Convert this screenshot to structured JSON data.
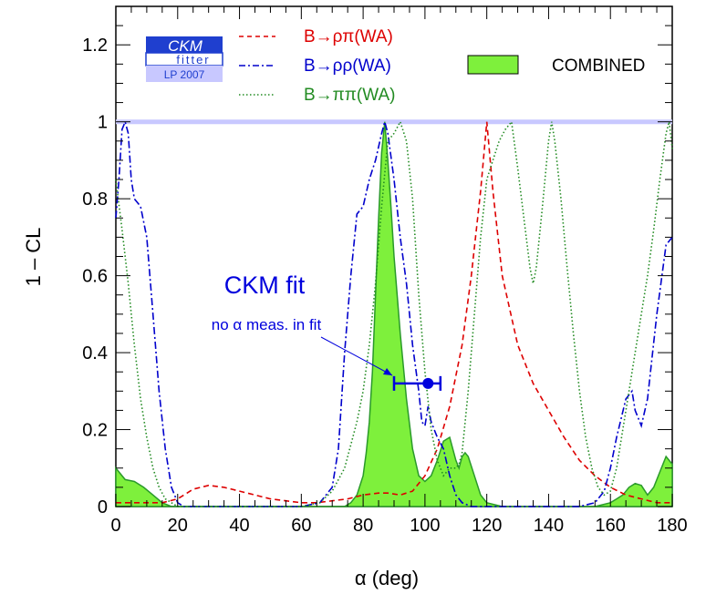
{
  "chart_data": {
    "type": "line",
    "xlabel": "α    (deg)",
    "ylabel": "1 – CL",
    "xlim": [
      0,
      180
    ],
    "ylim": [
      0,
      1.3
    ],
    "x_ticks": [
      "0",
      "20",
      "40",
      "60",
      "80",
      "100",
      "120",
      "140",
      "160",
      "180"
    ],
    "y_ticks": [
      "0",
      "0.2",
      "0.4",
      "0.6",
      "0.8",
      "1",
      "1.2"
    ],
    "x_tick_values": [
      0,
      20,
      40,
      60,
      80,
      100,
      120,
      140,
      160,
      180
    ],
    "y_tick_values": [
      0,
      0.2,
      0.4,
      0.6,
      0.8,
      1.0,
      1.2
    ],
    "grid": false,
    "reference_line": {
      "y": 1.0,
      "color": "#c8c8ff"
    },
    "logo": {
      "line1": "CKM",
      "line2": "fitter",
      "line3": "LP 2007"
    },
    "legend": {
      "placement": "top",
      "entries": [
        {
          "label": "B→ρπ(WA)",
          "color": "#dd0000",
          "style": "dashed"
        },
        {
          "label": "B→ρρ(WA)",
          "color": "#0000cc",
          "style": "dashdot"
        },
        {
          "label": "B→ππ(WA)",
          "color": "#228B22",
          "style": "dotted"
        },
        {
          "label": "COMBINED",
          "color": "#7ef03c",
          "style": "fill"
        }
      ]
    },
    "annotation": {
      "title": "CKM fit",
      "subtitle": "no α meas. in fit",
      "point": {
        "x": 101,
        "y": 0.32,
        "xerr_low": 90,
        "xerr_high": 105
      },
      "color": "#0000dd"
    },
    "series": [
      {
        "name": "B→ρπ(WA)",
        "color": "#dd0000",
        "style": "dashed",
        "x": [
          0,
          5,
          10,
          15,
          20,
          25,
          30,
          35,
          40,
          45,
          50,
          55,
          60,
          65,
          70,
          75,
          80,
          85,
          88,
          92,
          96,
          100,
          104,
          108,
          112,
          115,
          118,
          120,
          122,
          125,
          130,
          135,
          140,
          145,
          150,
          155,
          160,
          165,
          170,
          175,
          180
        ],
        "y": [
          0.01,
          0.01,
          0.01,
          0.01,
          0.02,
          0.045,
          0.055,
          0.05,
          0.04,
          0.03,
          0.02,
          0.015,
          0.01,
          0.01,
          0.015,
          0.02,
          0.03,
          0.035,
          0.035,
          0.03,
          0.04,
          0.08,
          0.15,
          0.26,
          0.42,
          0.6,
          0.82,
          1.0,
          0.82,
          0.6,
          0.42,
          0.32,
          0.25,
          0.18,
          0.12,
          0.08,
          0.05,
          0.03,
          0.02,
          0.01,
          0.01
        ]
      },
      {
        "name": "B→ρρ(WA)",
        "color": "#0000cc",
        "style": "dashdot",
        "x": [
          0,
          1,
          2,
          3,
          4,
          5,
          6,
          7,
          8,
          10,
          12,
          14,
          16,
          18,
          20,
          22,
          25,
          30,
          40,
          50,
          60,
          66,
          70,
          72,
          74,
          76,
          78,
          80,
          82,
          84,
          86,
          87,
          88,
          90,
          92,
          94,
          96,
          98,
          99,
          100,
          101,
          102,
          104,
          106,
          108,
          110,
          112,
          115,
          120,
          130,
          140,
          150,
          155,
          158,
          160,
          162,
          165,
          167,
          168,
          170,
          172,
          175,
          178,
          180
        ],
        "y": [
          0.75,
          0.85,
          0.98,
          1.0,
          0.97,
          0.85,
          0.8,
          0.79,
          0.78,
          0.7,
          0.5,
          0.3,
          0.15,
          0.05,
          0.01,
          0.0,
          0.0,
          0.0,
          0.0,
          0.0,
          0.0,
          0.01,
          0.05,
          0.15,
          0.4,
          0.6,
          0.76,
          0.78,
          0.85,
          0.9,
          0.97,
          1.0,
          0.97,
          0.85,
          0.7,
          0.58,
          0.42,
          0.3,
          0.22,
          0.21,
          0.26,
          0.22,
          0.18,
          0.15,
          0.08,
          0.03,
          0.01,
          0.0,
          0.0,
          0.0,
          0.0,
          0.0,
          0.01,
          0.04,
          0.1,
          0.18,
          0.28,
          0.3,
          0.25,
          0.21,
          0.28,
          0.5,
          0.68,
          0.7
        ]
      },
      {
        "name": "B→ππ(WA)",
        "color": "#228B22",
        "style": "dotted",
        "x": [
          0,
          2,
          4,
          6,
          8,
          10,
          12,
          14,
          16,
          18,
          20,
          40,
          60,
          66,
          70,
          74,
          78,
          80,
          82,
          84,
          86,
          88,
          90,
          92,
          94,
          96,
          98,
          100,
          102,
          104,
          106,
          108,
          110,
          111,
          112,
          114,
          116,
          118,
          120,
          122,
          124,
          126,
          128,
          130,
          132,
          134,
          135,
          136,
          138,
          140,
          141,
          142,
          144,
          146,
          148,
          150,
          152,
          154,
          156,
          158,
          160,
          162,
          164,
          166,
          168,
          170,
          172,
          174,
          176,
          178,
          179,
          180
        ],
        "y": [
          0.85,
          0.72,
          0.58,
          0.42,
          0.28,
          0.18,
          0.1,
          0.05,
          0.02,
          0.01,
          0.0,
          0.0,
          0.0,
          0.01,
          0.04,
          0.1,
          0.22,
          0.3,
          0.42,
          0.58,
          0.78,
          0.95,
          0.97,
          1.0,
          0.95,
          0.8,
          0.55,
          0.35,
          0.2,
          0.12,
          0.08,
          0.1,
          0.1,
          0.11,
          0.14,
          0.3,
          0.5,
          0.7,
          0.85,
          0.9,
          0.95,
          0.98,
          1.0,
          0.88,
          0.75,
          0.62,
          0.58,
          0.62,
          0.78,
          0.95,
          1.0,
          0.95,
          0.8,
          0.62,
          0.45,
          0.3,
          0.18,
          0.1,
          0.05,
          0.03,
          0.04,
          0.1,
          0.2,
          0.3,
          0.4,
          0.5,
          0.6,
          0.72,
          0.85,
          0.97,
          1.0,
          0.93
        ]
      },
      {
        "name": "COMBINED",
        "color": "#7ef03c",
        "style": "fill",
        "x": [
          0,
          1,
          3,
          6,
          9,
          12,
          15,
          18,
          20,
          40,
          60,
          74,
          76,
          78,
          80,
          81,
          82,
          83,
          84,
          85,
          86,
          87,
          88,
          89,
          90,
          91,
          92,
          94,
          96,
          98,
          100,
          102,
          104,
          106,
          108,
          110,
          111,
          112,
          113,
          114,
          116,
          118,
          120,
          125,
          130,
          140,
          150,
          155,
          160,
          162,
          164,
          166,
          168,
          170,
          172,
          174,
          176,
          178,
          180
        ],
        "y": [
          0.1,
          0.09,
          0.07,
          0.065,
          0.05,
          0.03,
          0.01,
          0.0,
          0.0,
          0.0,
          0.0,
          0.0,
          0.01,
          0.03,
          0.08,
          0.14,
          0.22,
          0.35,
          0.55,
          0.75,
          0.92,
          1.0,
          0.9,
          0.78,
          0.65,
          0.55,
          0.45,
          0.28,
          0.15,
          0.08,
          0.065,
          0.08,
          0.12,
          0.17,
          0.18,
          0.12,
          0.1,
          0.13,
          0.14,
          0.13,
          0.08,
          0.03,
          0.01,
          0.0,
          0.0,
          0.0,
          0.0,
          0.0,
          0.01,
          0.02,
          0.03,
          0.05,
          0.06,
          0.055,
          0.03,
          0.05,
          0.09,
          0.13,
          0.11
        ]
      }
    ]
  }
}
